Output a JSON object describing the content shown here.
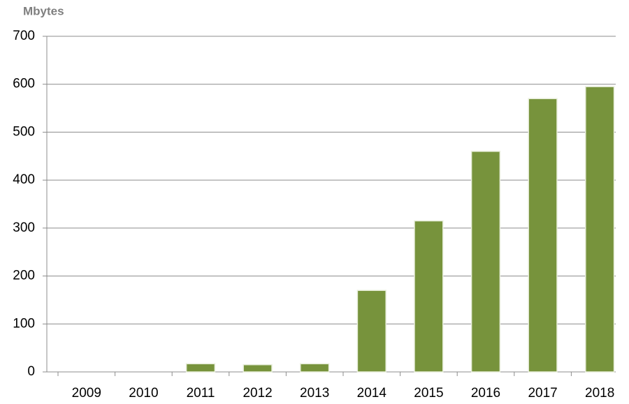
{
  "chart_data": {
    "type": "bar",
    "y_label": "Mbytes",
    "categories": [
      "2009",
      "2010",
      "2011",
      "2012",
      "2013",
      "2014",
      "2015",
      "2016",
      "2017",
      "2018"
    ],
    "values": [
      0,
      0,
      17,
      15,
      17,
      170,
      315,
      460,
      570,
      595
    ],
    "color": "#77933c",
    "ylim": [
      0,
      700
    ],
    "yticks": [
      0,
      100,
      200,
      300,
      400,
      500,
      600,
      700
    ],
    "grid": true
  }
}
